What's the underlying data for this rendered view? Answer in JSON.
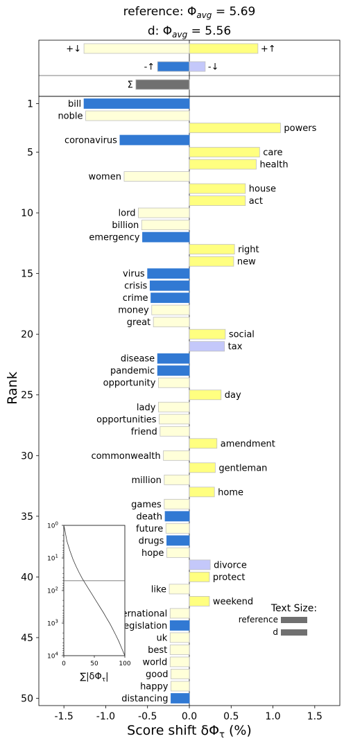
{
  "chart_data": {
    "type": "bar",
    "orientation": "horizontal",
    "title_line1": "reference: Φ",
    "title_line1_sub": "avg",
    "title_line1_value": " = 5.69",
    "title_line2": "d: Φ",
    "title_line2_sub": "avg",
    "title_line2_value": " = 5.56",
    "xlabel": "Score shift δΦ",
    "xlabel_sub": "τ",
    "xlabel_unit": " (%)",
    "ylabel": "Rank",
    "xlim": [
      -1.8,
      1.8
    ],
    "ylim": [
      50.6,
      0.4
    ],
    "xticks": [
      -1.5,
      -1.0,
      -0.5,
      0.0,
      0.5,
      1.0,
      1.5
    ],
    "xtick_labels": [
      "-1.5",
      "-1.0",
      "-0.5",
      "0.0",
      "0.5",
      "1.0",
      "1.5"
    ],
    "yticks": [
      1,
      5,
      10,
      15,
      20,
      25,
      30,
      35,
      40,
      45,
      50
    ],
    "ytick_labels": [
      "1",
      "5",
      "10",
      "15",
      "20",
      "25",
      "30",
      "35",
      "40",
      "45",
      "50"
    ],
    "colors": {
      "pos_up": "#ffff80",
      "neg_down": "#ffffd9",
      "neg_up": "#3179d3",
      "pos_down": "#c4c8fa",
      "sum": "#707070",
      "edge": "#bfbfbf"
    },
    "summary": [
      {
        "label": "+↓",
        "value": -1.26,
        "kind": "neg_down",
        "side": "left"
      },
      {
        "label": "+↑",
        "value": 0.82,
        "kind": "pos_up",
        "side": "right"
      },
      {
        "label": "-↑",
        "value": -0.38,
        "kind": "neg_up",
        "side": "left"
      },
      {
        "label": "-↓",
        "value": 0.19,
        "kind": "pos_down",
        "side": "right"
      },
      {
        "label": "Σ",
        "value": -0.64,
        "kind": "sum",
        "side": "left"
      }
    ],
    "words": [
      {
        "rank": 1,
        "word": "bill",
        "value": -1.26,
        "kind": "neg_up"
      },
      {
        "rank": 2,
        "word": "noble",
        "value": -1.24,
        "kind": "neg_down"
      },
      {
        "rank": 3,
        "word": "powers",
        "value": 1.09,
        "kind": "pos_up"
      },
      {
        "rank": 4,
        "word": "coronavirus",
        "value": -0.83,
        "kind": "neg_up"
      },
      {
        "rank": 5,
        "word": "care",
        "value": 0.84,
        "kind": "pos_up"
      },
      {
        "rank": 6,
        "word": "health",
        "value": 0.8,
        "kind": "pos_up"
      },
      {
        "rank": 7,
        "word": "women",
        "value": -0.78,
        "kind": "neg_down"
      },
      {
        "rank": 8,
        "word": "house",
        "value": 0.67,
        "kind": "pos_up"
      },
      {
        "rank": 9,
        "word": "act",
        "value": 0.67,
        "kind": "pos_up"
      },
      {
        "rank": 10,
        "word": "lord",
        "value": -0.61,
        "kind": "neg_down"
      },
      {
        "rank": 11,
        "word": "billion",
        "value": -0.57,
        "kind": "neg_down"
      },
      {
        "rank": 12,
        "word": "emergency",
        "value": -0.56,
        "kind": "neg_up"
      },
      {
        "rank": 13,
        "word": "right",
        "value": 0.54,
        "kind": "pos_up"
      },
      {
        "rank": 14,
        "word": "new",
        "value": 0.53,
        "kind": "pos_up"
      },
      {
        "rank": 15,
        "word": "virus",
        "value": -0.5,
        "kind": "neg_up"
      },
      {
        "rank": 16,
        "word": "crisis",
        "value": -0.47,
        "kind": "neg_up"
      },
      {
        "rank": 17,
        "word": "crime",
        "value": -0.46,
        "kind": "neg_up"
      },
      {
        "rank": 18,
        "word": "money",
        "value": -0.45,
        "kind": "neg_down"
      },
      {
        "rank": 19,
        "word": "great",
        "value": -0.43,
        "kind": "neg_down"
      },
      {
        "rank": 20,
        "word": "social",
        "value": 0.43,
        "kind": "pos_up"
      },
      {
        "rank": 21,
        "word": "tax",
        "value": 0.42,
        "kind": "pos_down"
      },
      {
        "rank": 22,
        "word": "disease",
        "value": -0.38,
        "kind": "neg_up"
      },
      {
        "rank": 23,
        "word": "pandemic",
        "value": -0.38,
        "kind": "neg_up"
      },
      {
        "rank": 24,
        "word": "opportunity",
        "value": -0.37,
        "kind": "neg_down"
      },
      {
        "rank": 25,
        "word": "day",
        "value": 0.38,
        "kind": "pos_up"
      },
      {
        "rank": 26,
        "word": "lady",
        "value": -0.37,
        "kind": "neg_down"
      },
      {
        "rank": 27,
        "word": "opportunities",
        "value": -0.36,
        "kind": "neg_down"
      },
      {
        "rank": 28,
        "word": "friend",
        "value": -0.35,
        "kind": "neg_down"
      },
      {
        "rank": 29,
        "word": "amendment",
        "value": 0.33,
        "kind": "pos_up"
      },
      {
        "rank": 30,
        "word": "commonwealth",
        "value": -0.31,
        "kind": "neg_down"
      },
      {
        "rank": 31,
        "word": "gentleman",
        "value": 0.31,
        "kind": "pos_up"
      },
      {
        "rank": 32,
        "word": "million",
        "value": -0.3,
        "kind": "neg_down"
      },
      {
        "rank": 33,
        "word": "home",
        "value": 0.3,
        "kind": "pos_up"
      },
      {
        "rank": 34,
        "word": "games",
        "value": -0.3,
        "kind": "neg_down"
      },
      {
        "rank": 35,
        "word": "death",
        "value": -0.29,
        "kind": "neg_up"
      },
      {
        "rank": 36,
        "word": "future",
        "value": -0.28,
        "kind": "neg_down"
      },
      {
        "rank": 37,
        "word": "drugs",
        "value": -0.27,
        "kind": "neg_up"
      },
      {
        "rank": 38,
        "word": "hope",
        "value": -0.27,
        "kind": "neg_down"
      },
      {
        "rank": 39,
        "word": "divorce",
        "value": 0.25,
        "kind": "pos_down"
      },
      {
        "rank": 40,
        "word": "protect",
        "value": 0.24,
        "kind": "pos_up"
      },
      {
        "rank": 41,
        "word": "like",
        "value": -0.24,
        "kind": "neg_down"
      },
      {
        "rank": 42,
        "word": "weekend",
        "value": 0.24,
        "kind": "pos_up"
      },
      {
        "rank": 43,
        "word": "international",
        "value": -0.23,
        "kind": "neg_down"
      },
      {
        "rank": 44,
        "word": "legislation",
        "value": -0.23,
        "kind": "neg_up"
      },
      {
        "rank": 45,
        "word": "uk",
        "value": -0.23,
        "kind": "neg_down"
      },
      {
        "rank": 46,
        "word": "best",
        "value": -0.23,
        "kind": "neg_down"
      },
      {
        "rank": 47,
        "word": "world",
        "value": -0.23,
        "kind": "neg_down"
      },
      {
        "rank": 48,
        "word": "good",
        "value": -0.22,
        "kind": "neg_down"
      },
      {
        "rank": 49,
        "word": "happy",
        "value": -0.22,
        "kind": "neg_down"
      },
      {
        "rank": 50,
        "word": "distancing",
        "value": -0.22,
        "kind": "neg_up"
      }
    ],
    "inset": {
      "xlabel": "∑|δΦ",
      "xlabel_sub": "τ",
      "xlabel_close": "|",
      "xticks": [
        0,
        50,
        100
      ],
      "xtick_labels": [
        "0",
        "50",
        "100"
      ],
      "xlim": [
        0,
        100
      ],
      "ytick_base": "10",
      "ytick_exponents": [
        "0",
        "1",
        "2",
        "3",
        "4"
      ],
      "ylim_exponent": [
        0,
        4
      ],
      "reference_rank": 50,
      "curve": [
        [
          0,
          1
        ],
        [
          2,
          1.5
        ],
        [
          5,
          3
        ],
        [
          10,
          6
        ],
        [
          15,
          11
        ],
        [
          20,
          18
        ],
        [
          25,
          28
        ],
        [
          30,
          42
        ],
        [
          35,
          60
        ],
        [
          40,
          85
        ],
        [
          45,
          120
        ],
        [
          50,
          170
        ],
        [
          55,
          240
        ],
        [
          60,
          340
        ],
        [
          65,
          480
        ],
        [
          70,
          700
        ],
        [
          75,
          1000
        ],
        [
          80,
          1500
        ],
        [
          85,
          2300
        ],
        [
          90,
          3600
        ],
        [
          95,
          6000
        ],
        [
          100,
          10000
        ]
      ]
    },
    "text_size_legend": {
      "title": "Text Size:",
      "items": [
        {
          "label": "reference",
          "value": 5.69
        },
        {
          "label": "d",
          "value": 5.56
        }
      ]
    }
  }
}
